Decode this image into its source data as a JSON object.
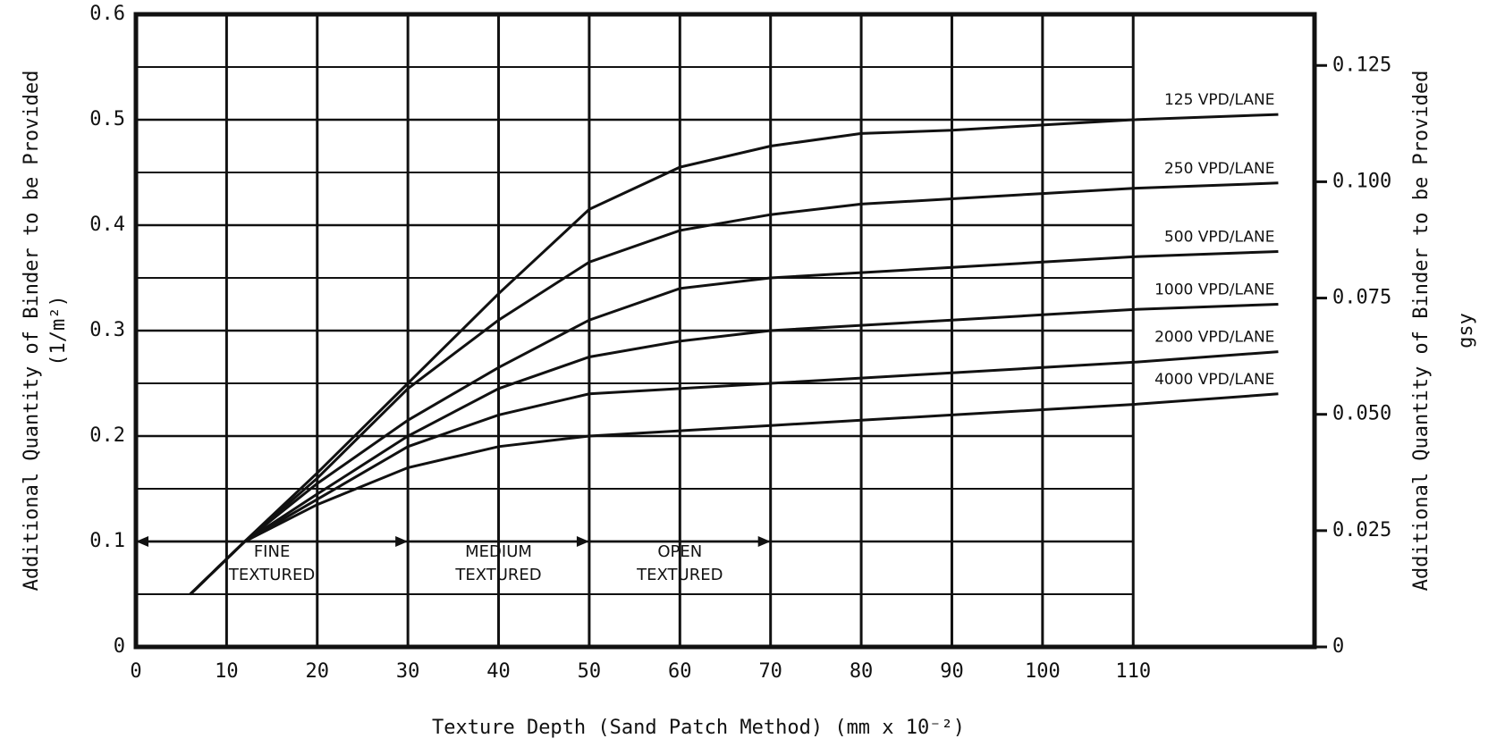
{
  "chart_data": {
    "type": "line",
    "x_label": "Texture Depth (Sand Patch Method) (mm x 10⁻²)",
    "y_label": [
      "Additional Quantity of Binder to be Provided",
      "(1/m²)"
    ],
    "y2_label": [
      "Additional Quantity of Binder to be Provided",
      "gsy"
    ],
    "x": [
      6,
      12,
      20,
      30,
      40,
      50,
      60,
      70,
      80,
      90,
      100,
      110,
      126
    ],
    "series": [
      {
        "name": "125 VPD/LANE",
        "color": "#111111",
        "values": [
          0.05,
          0.1,
          0.165,
          0.25,
          0.335,
          0.415,
          0.455,
          0.475,
          0.487,
          0.49,
          0.495,
          0.5,
          0.505
        ]
      },
      {
        "name": "250 VPD/LANE",
        "color": "#111111",
        "values": [
          0.05,
          0.1,
          0.16,
          0.245,
          0.31,
          0.365,
          0.395,
          0.41,
          0.42,
          0.425,
          0.43,
          0.435,
          0.44
        ]
      },
      {
        "name": "500 VPD/LANE",
        "color": "#111111",
        "values": [
          0.05,
          0.1,
          0.155,
          0.215,
          0.265,
          0.31,
          0.34,
          0.35,
          0.355,
          0.36,
          0.365,
          0.37,
          0.375
        ]
      },
      {
        "name": "1000 VPD/LANE",
        "color": "#111111",
        "values": [
          0.05,
          0.1,
          0.145,
          0.2,
          0.245,
          0.275,
          0.29,
          0.3,
          0.305,
          0.31,
          0.315,
          0.32,
          0.325
        ]
      },
      {
        "name": "2000 VPD/LANE",
        "color": "#111111",
        "values": [
          0.05,
          0.1,
          0.14,
          0.19,
          0.22,
          0.24,
          0.245,
          0.25,
          0.255,
          0.26,
          0.265,
          0.27,
          0.28
        ]
      },
      {
        "name": "4000 VPD/LANE",
        "color": "#111111",
        "values": [
          0.05,
          0.1,
          0.135,
          0.17,
          0.19,
          0.2,
          0.205,
          0.21,
          0.215,
          0.22,
          0.225,
          0.23,
          0.24
        ]
      }
    ],
    "annotations": [
      {
        "lines": [
          "FINE",
          "TEXTURED"
        ],
        "x_range": [
          0,
          30
        ]
      },
      {
        "lines": [
          "MEDIUM",
          "TEXTURED"
        ],
        "x_range": [
          30,
          50
        ]
      },
      {
        "lines": [
          "OPEN",
          "TEXTURED"
        ],
        "x_range": [
          50,
          70
        ]
      }
    ],
    "annotation_y": 0.1,
    "xlim": [
      0,
      130
    ],
    "xticks": [
      0,
      10,
      20,
      30,
      40,
      50,
      60,
      70,
      80,
      90,
      100,
      110
    ],
    "ylim": [
      0,
      0.6
    ],
    "yticks": [
      0,
      0.1,
      0.2,
      0.3,
      0.4,
      0.5,
      0.6
    ],
    "y_minor_grid": [
      0.05,
      0.15,
      0.25,
      0.35,
      0.45,
      0.55
    ],
    "y2lim": [
      0,
      0.136
    ],
    "y2ticks": [
      0,
      0.025,
      {
        "value": 0.05,
        "label": "0.050"
      },
      0.075,
      {
        "value": 0.1,
        "label": "0.100"
      },
      0.125
    ],
    "grid": true
  }
}
